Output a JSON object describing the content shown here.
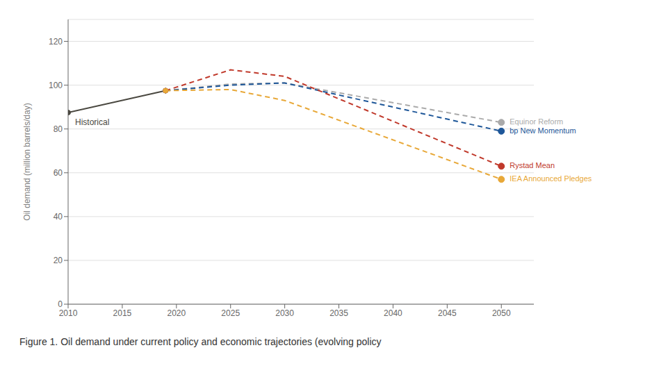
{
  "chart_data": {
    "type": "line",
    "title": "Figure 1. Oil demand under current policy and economic trajectories (evolving policy",
    "y_label": "Oil demand (million barrels/day)",
    "xlim": [
      2010,
      2053
    ],
    "xticks": [
      2010,
      2015,
      2020,
      2025,
      2030,
      2035,
      2040,
      2045,
      2050
    ],
    "ylim": [
      0,
      130
    ],
    "yticks": [
      0,
      20,
      40,
      60,
      80,
      100,
      120
    ],
    "grid": true,
    "series": [
      {
        "name": "Historical",
        "color": "#4a4840",
        "line_style": "solid",
        "marker": "circle",
        "x": [
          2010,
          2019
        ],
        "values": [
          87.5,
          97.5
        ]
      },
      {
        "name": "Equinor Reform",
        "color": "#aaaaaa",
        "line_style": "dashed",
        "marker": "circle",
        "x": [
          2019,
          2025,
          2030,
          2050
        ],
        "values": [
          97.5,
          100.5,
          101.0,
          83.0
        ]
      },
      {
        "name": "bp New Momentum",
        "color": "#1e5799",
        "line_style": "dashed",
        "marker": "circle",
        "x": [
          2019,
          2025,
          2030,
          2050
        ],
        "values": [
          97.5,
          100.0,
          101.0,
          79.0
        ]
      },
      {
        "name": "Rystad Mean",
        "color": "#c0392b",
        "line_style": "dashed",
        "marker": "circle",
        "x": [
          2019,
          2025,
          2030,
          2050
        ],
        "values": [
          97.5,
          107.0,
          104.0,
          63.0
        ]
      },
      {
        "name": "IEA Announced Pledges",
        "color": "#e8a838",
        "line_style": "dashed",
        "marker": "circle",
        "x": [
          2019,
          2025,
          2030,
          2050
        ],
        "values": [
          97.5,
          98.0,
          93.0,
          57.0
        ]
      }
    ]
  }
}
